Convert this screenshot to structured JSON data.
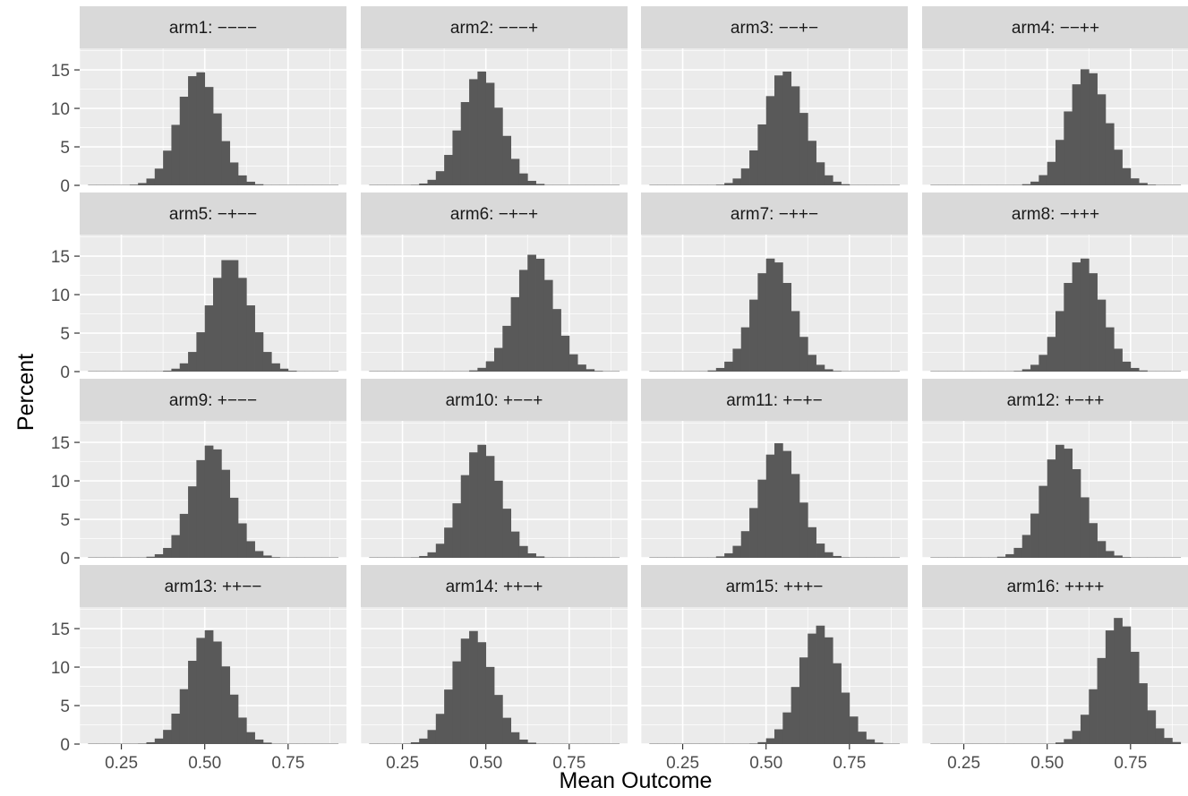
{
  "chart_data": {
    "type": "bar",
    "subtype": "faceted-histogram",
    "xlabel": "Mean Outcome",
    "ylabel": "Percent",
    "x_ticks": [
      0.25,
      0.5,
      0.75
    ],
    "x_tick_labels": [
      "0.25",
      "0.50",
      "0.75"
    ],
    "y_ticks": [
      0,
      5,
      10,
      15
    ],
    "y_tick_labels": [
      "0",
      "5",
      "10",
      "15"
    ],
    "xlim": [
      0.125,
      0.925
    ],
    "ylim": [
      0,
      17.8
    ],
    "grid": true,
    "legend": "none",
    "bar_color": "#595959",
    "panel_background": "#ebebeb",
    "strip_background": "#d9d9d9",
    "bin_width": 0.025,
    "facet_layout": {
      "rows": 4,
      "cols": 4
    },
    "bins": [
      0.1625,
      0.1875,
      0.2125,
      0.2375,
      0.2625,
      0.2875,
      0.3125,
      0.3375,
      0.3625,
      0.3875,
      0.4125,
      0.4375,
      0.4625,
      0.4875,
      0.5125,
      0.5375,
      0.5625,
      0.5875,
      0.6125,
      0.6375,
      0.6625,
      0.6875,
      0.7125,
      0.7375,
      0.7625,
      0.7875,
      0.8125,
      0.8375,
      0.8625,
      0.8875
    ],
    "panels": [
      {
        "title": "arm1: −−−−",
        "center": 0.48,
        "peak": 14.8
      },
      {
        "title": "arm2: −−−+",
        "center": 0.485,
        "peak": 14.8
      },
      {
        "title": "arm3: −−+−",
        "center": 0.555,
        "peak": 14.9
      },
      {
        "title": "arm4: −−++",
        "center": 0.62,
        "peak": 15.2
      },
      {
        "title": "arm5: −+−−",
        "center": 0.575,
        "peak": 14.8
      },
      {
        "title": "arm6: −+−+",
        "center": 0.645,
        "peak": 15.3
      },
      {
        "title": "arm7: −++−",
        "center": 0.52,
        "peak": 14.8
      },
      {
        "title": "arm8: −+++",
        "center": 0.605,
        "peak": 14.8
      },
      {
        "title": "arm9: +−−−",
        "center": 0.52,
        "peak": 14.7
      },
      {
        "title": "arm10: +−−+",
        "center": 0.485,
        "peak": 14.7
      },
      {
        "title": "arm11: +−+−",
        "center": 0.54,
        "peak": 14.9
      },
      {
        "title": "arm12: +−++",
        "center": 0.545,
        "peak": 14.8
      },
      {
        "title": "arm13: ++−−",
        "center": 0.51,
        "peak": 14.8
      },
      {
        "title": "arm14: ++−+",
        "center": 0.46,
        "peak": 14.7
      },
      {
        "title": "arm15: +++−",
        "center": 0.66,
        "peak": 15.4
      },
      {
        "title": "arm16: ++++",
        "center": 0.715,
        "peak": 16.4
      }
    ]
  }
}
